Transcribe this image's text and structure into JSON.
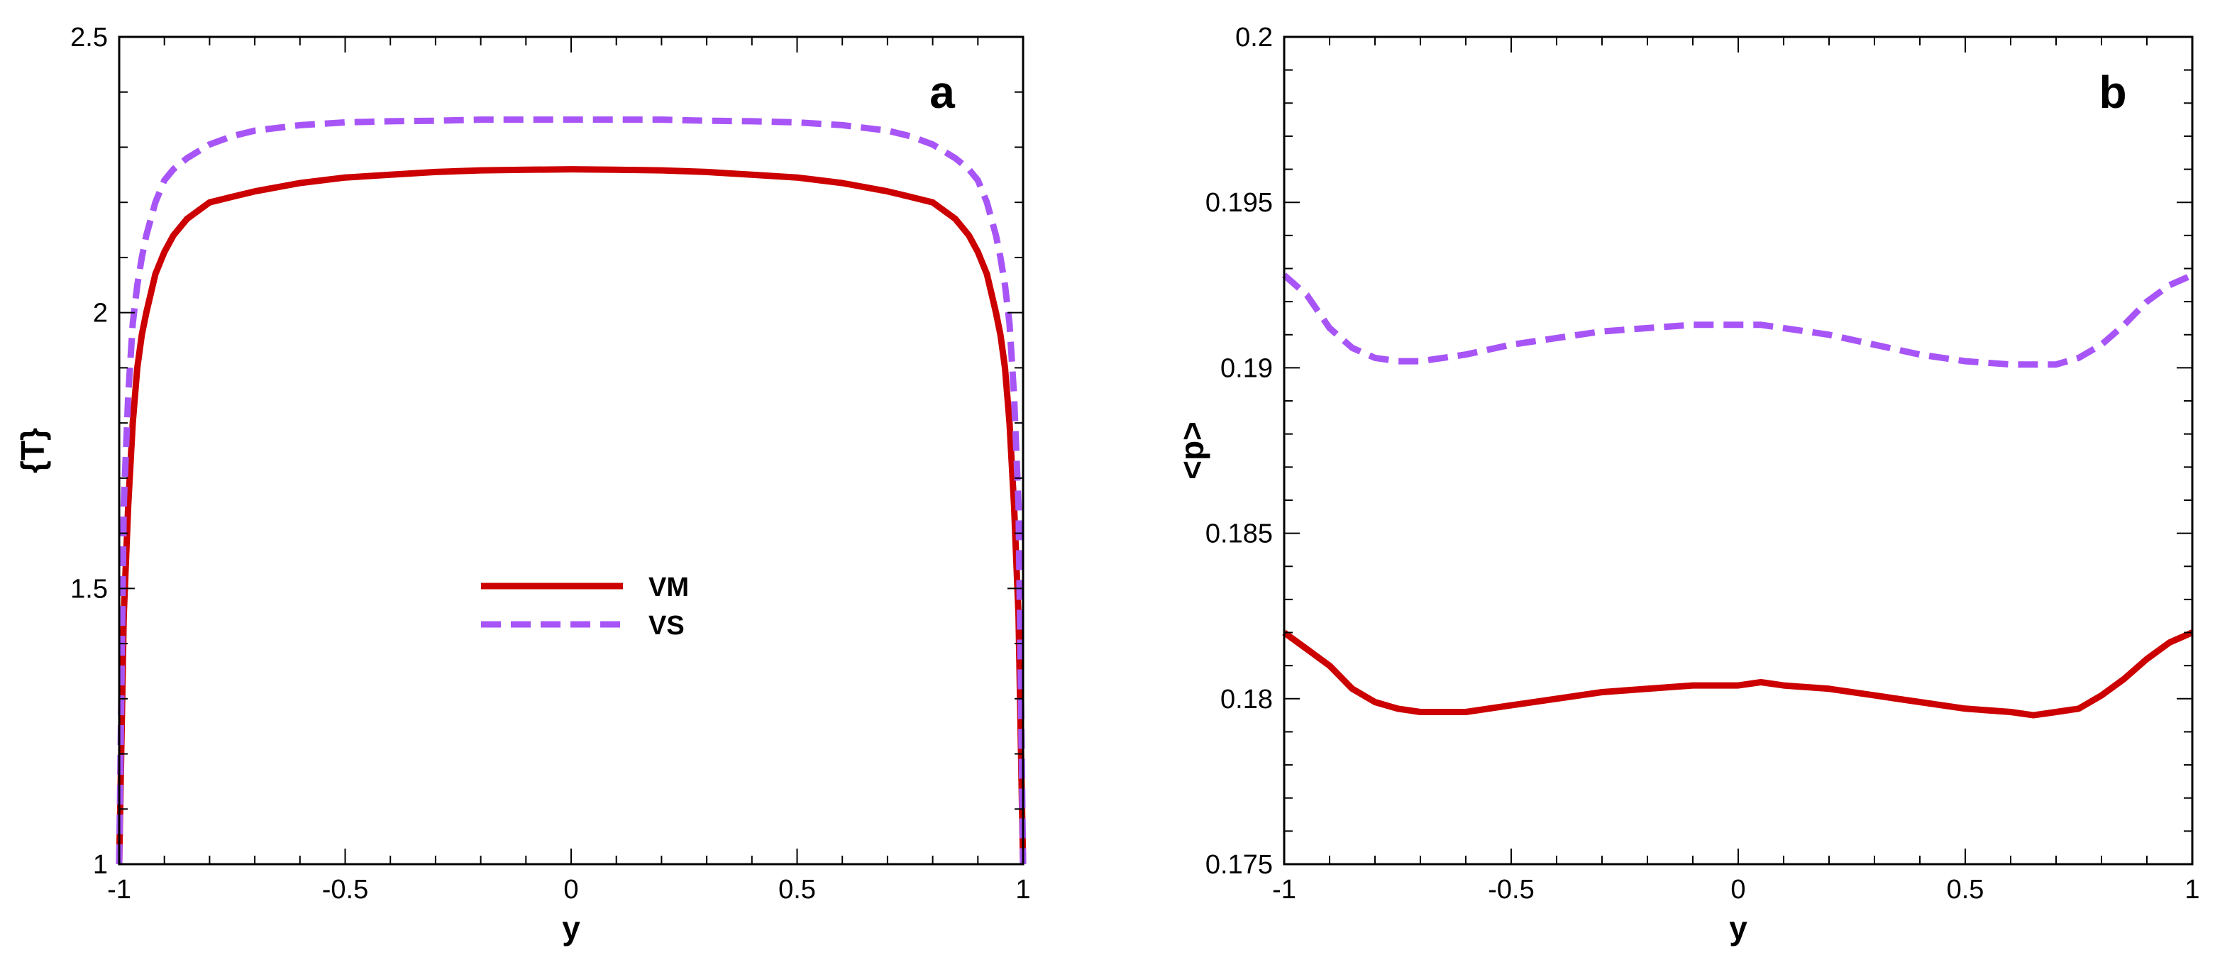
{
  "chart_data": [
    {
      "type": "line",
      "panel_label": "a",
      "title": "",
      "xlabel": "y",
      "ylabel": "{T}",
      "xlim": [
        -1,
        1
      ],
      "ylim": [
        1,
        2.5
      ],
      "xticks": [
        -1,
        -0.5,
        0,
        0.5,
        1
      ],
      "xtick_labels": [
        "-1",
        "-0.5",
        "0",
        "0.5",
        "1"
      ],
      "yticks": [
        1,
        1.5,
        2,
        2.5
      ],
      "ytick_labels": [
        "1",
        "1.5",
        "2",
        "2.5"
      ],
      "grid": false,
      "legend_position": "center",
      "series": [
        {
          "name": "VM",
          "color": "#cc0000",
          "style": "solid",
          "x": [
            -1,
            -0.99,
            -0.98,
            -0.97,
            -0.96,
            -0.95,
            -0.94,
            -0.92,
            -0.9,
            -0.88,
            -0.85,
            -0.8,
            -0.75,
            -0.7,
            -0.6,
            -0.5,
            -0.4,
            -0.3,
            -0.2,
            -0.1,
            0,
            0.1,
            0.2,
            0.3,
            0.4,
            0.5,
            0.6,
            0.7,
            0.75,
            0.8,
            0.85,
            0.88,
            0.9,
            0.92,
            0.94,
            0.95,
            0.96,
            0.97,
            0.98,
            0.99,
            1
          ],
          "y": [
            1.0,
            1.45,
            1.65,
            1.8,
            1.9,
            1.96,
            2.0,
            2.07,
            2.11,
            2.14,
            2.17,
            2.2,
            2.21,
            2.22,
            2.235,
            2.245,
            2.25,
            2.255,
            2.258,
            2.259,
            2.26,
            2.259,
            2.258,
            2.255,
            2.25,
            2.245,
            2.235,
            2.22,
            2.21,
            2.2,
            2.17,
            2.14,
            2.11,
            2.07,
            2.0,
            1.96,
            1.9,
            1.8,
            1.65,
            1.45,
            1.0
          ]
        },
        {
          "name": "VS",
          "color": "#a855f7",
          "style": "dashed",
          "x": [
            -1,
            -0.99,
            -0.98,
            -0.97,
            -0.96,
            -0.95,
            -0.94,
            -0.92,
            -0.9,
            -0.88,
            -0.85,
            -0.8,
            -0.75,
            -0.7,
            -0.6,
            -0.5,
            -0.4,
            -0.3,
            -0.2,
            -0.1,
            0,
            0.1,
            0.2,
            0.3,
            0.4,
            0.5,
            0.6,
            0.7,
            0.75,
            0.8,
            0.85,
            0.88,
            0.9,
            0.92,
            0.94,
            0.95,
            0.96,
            0.97,
            0.98,
            0.99,
            1
          ],
          "y": [
            1.0,
            1.65,
            1.85,
            1.98,
            2.05,
            2.1,
            2.14,
            2.2,
            2.24,
            2.26,
            2.28,
            2.305,
            2.32,
            2.33,
            2.34,
            2.345,
            2.347,
            2.348,
            2.35,
            2.35,
            2.35,
            2.35,
            2.35,
            2.348,
            2.347,
            2.345,
            2.34,
            2.33,
            2.32,
            2.305,
            2.28,
            2.26,
            2.24,
            2.2,
            2.14,
            2.1,
            2.05,
            1.98,
            1.85,
            1.65,
            1.0
          ]
        }
      ],
      "legend": [
        "VM",
        "VS"
      ]
    },
    {
      "type": "line",
      "panel_label": "b",
      "title": "",
      "xlabel": "y",
      "ylabel": "<p>",
      "xlim": [
        -1,
        1
      ],
      "ylim": [
        0.175,
        0.2
      ],
      "xticks": [
        -1,
        -0.5,
        0,
        0.5,
        1
      ],
      "xtick_labels": [
        "-1",
        "-0.5",
        "0",
        "0.5",
        "1"
      ],
      "yticks": [
        0.175,
        0.18,
        0.185,
        0.19,
        0.195,
        0.2
      ],
      "ytick_labels": [
        "0.175",
        "0.18",
        "0.185",
        "0.19",
        "0.195",
        "0.2"
      ],
      "grid": false,
      "series": [
        {
          "name": "VM",
          "color": "#cc0000",
          "style": "solid",
          "x": [
            -1,
            -0.95,
            -0.9,
            -0.85,
            -0.8,
            -0.75,
            -0.7,
            -0.65,
            -0.6,
            -0.5,
            -0.4,
            -0.3,
            -0.2,
            -0.1,
            0,
            0.05,
            0.1,
            0.2,
            0.3,
            0.4,
            0.5,
            0.6,
            0.65,
            0.7,
            0.75,
            0.8,
            0.85,
            0.9,
            0.95,
            1
          ],
          "y": [
            0.182,
            0.1815,
            0.181,
            0.1803,
            0.1799,
            0.1797,
            0.1796,
            0.1796,
            0.1796,
            0.1798,
            0.18,
            0.1802,
            0.1803,
            0.1804,
            0.1804,
            0.1805,
            0.1804,
            0.1803,
            0.1801,
            0.1799,
            0.1797,
            0.1796,
            0.1795,
            0.1796,
            0.1797,
            0.1801,
            0.1806,
            0.1812,
            0.1817,
            0.182
          ]
        },
        {
          "name": "VS",
          "color": "#a855f7",
          "style": "dashed",
          "x": [
            -1,
            -0.95,
            -0.9,
            -0.85,
            -0.8,
            -0.75,
            -0.7,
            -0.65,
            -0.6,
            -0.5,
            -0.4,
            -0.3,
            -0.2,
            -0.1,
            0,
            0.05,
            0.1,
            0.2,
            0.3,
            0.4,
            0.5,
            0.6,
            0.65,
            0.7,
            0.75,
            0.8,
            0.85,
            0.9,
            0.95,
            1
          ],
          "y": [
            0.1928,
            0.1922,
            0.1912,
            0.1906,
            0.1903,
            0.1902,
            0.1902,
            0.1903,
            0.1904,
            0.1907,
            0.1909,
            0.1911,
            0.1912,
            0.1913,
            0.1913,
            0.1913,
            0.1912,
            0.191,
            0.1907,
            0.1904,
            0.1902,
            0.1901,
            0.1901,
            0.1901,
            0.1903,
            0.1907,
            0.1913,
            0.192,
            0.1925,
            0.1928
          ]
        }
      ]
    }
  ]
}
